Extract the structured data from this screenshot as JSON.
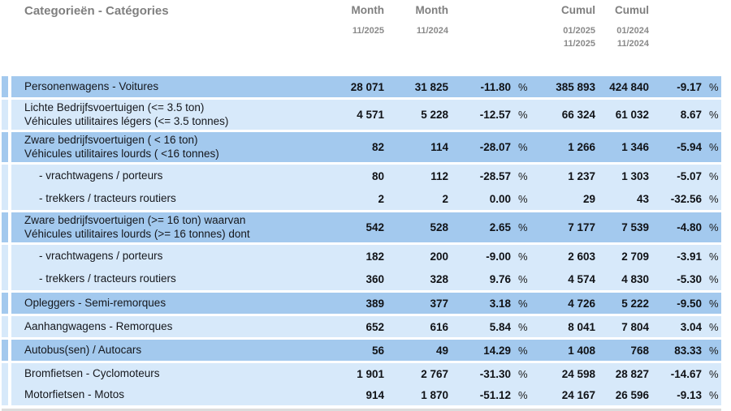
{
  "header": {
    "title": "Categorieën - Catégories",
    "month1": {
      "label": "Month",
      "period": "11/2025"
    },
    "month2": {
      "label": "Month",
      "period": "11/2024"
    },
    "cumul1": {
      "label": "Cumul",
      "from": "01/2025",
      "to": "11/2025"
    },
    "cumul2": {
      "label": "Cumul",
      "from": "01/2024",
      "to": "11/2024"
    },
    "percent_sign": "%"
  },
  "colors": {
    "row_dark": "#a3c9ee",
    "row_light": "#d7e9fa",
    "header_text": "#7f7f7f",
    "body_text": "#15171c"
  },
  "table": {
    "rows": [
      {
        "label1": "Personenwagens - Voitures",
        "label2": "",
        "shade": "dark",
        "sub": false,
        "gap": false,
        "m1": "28 071",
        "m2": "31 825",
        "mp": "-11.80",
        "c1": "385 893",
        "c2": "424 840",
        "cp": "-9.17"
      },
      {
        "label1": "Lichte Bedrijfsvoertuigen (<= 3.5 ton)",
        "label2": "Véhicules utilitaires légers (<= 3.5 tonnes)",
        "shade": "light",
        "sub": false,
        "gap": true,
        "m1": "4 571",
        "m2": "5 228",
        "mp": "-12.57",
        "c1": "66 324",
        "c2": "61 032",
        "cp": "8.67"
      },
      {
        "label1": "Zware bedrijfsvoertuigen ( < 16 ton)",
        "label2": "Véhicules utilitaires lourds ( <16 tonnes)",
        "shade": "dark",
        "sub": false,
        "gap": true,
        "m1": "82",
        "m2": "114",
        "mp": "-28.07",
        "c1": "1 266",
        "c2": "1 346",
        "cp": "-5.94"
      },
      {
        "label1": "- vrachtwagens / porteurs",
        "label2": "",
        "shade": "light",
        "sub": true,
        "gap": true,
        "m1": "80",
        "m2": "112",
        "mp": "-28.57",
        "c1": "1 237",
        "c2": "1 303",
        "cp": "-5.07"
      },
      {
        "label1": "- trekkers / tracteurs routiers",
        "label2": "",
        "shade": "light",
        "sub": true,
        "gap": false,
        "m1": "2",
        "m2": "2",
        "mp": "0.00",
        "c1": "29",
        "c2": "43",
        "cp": "-32.56"
      },
      {
        "label1": "Zware bedrijfsvoertuigen (>= 16 ton) waarvan",
        "label2": "Véhicules utilitaires lourds (>= 16 tonnes) dont",
        "shade": "dark",
        "sub": false,
        "gap": true,
        "m1": "542",
        "m2": "528",
        "mp": "2.65",
        "c1": "7 177",
        "c2": "7 539",
        "cp": "-4.80"
      },
      {
        "label1": "- vrachtwagens / porteurs",
        "label2": "",
        "shade": "light",
        "sub": true,
        "gap": true,
        "m1": "182",
        "m2": "200",
        "mp": "-9.00",
        "c1": "2 603",
        "c2": "2 709",
        "cp": "-3.91"
      },
      {
        "label1": "- trekkers / tracteurs routiers",
        "label2": "",
        "shade": "light",
        "sub": true,
        "gap": false,
        "m1": "360",
        "m2": "328",
        "mp": "9.76",
        "c1": "4 574",
        "c2": "4 830",
        "cp": "-5.30"
      },
      {
        "label1": "Opleggers - Semi-remorques",
        "label2": "",
        "shade": "dark",
        "sub": false,
        "gap": true,
        "m1": "389",
        "m2": "377",
        "mp": "3.18",
        "c1": "4 726",
        "c2": "5 222",
        "cp": "-9.50"
      },
      {
        "label1": "Aanhangwagens - Remorques",
        "label2": "",
        "shade": "light",
        "sub": false,
        "gap": true,
        "m1": "652",
        "m2": "616",
        "mp": "5.84",
        "c1": "8 041",
        "c2": "7 804",
        "cp": "3.04"
      },
      {
        "label1": "Autobus(sen) / Autocars",
        "label2": "",
        "shade": "dark",
        "sub": false,
        "gap": true,
        "m1": "56",
        "m2": "49",
        "mp": "14.29",
        "c1": "1 408",
        "c2": "768",
        "cp": "83.33"
      },
      {
        "label1": "Bromfietsen - Cyclomoteurs",
        "label2": "",
        "shade": "light",
        "sub": false,
        "gap": true,
        "m1": "1 901",
        "m2": "2 767",
        "mp": "-31.30",
        "c1": "24 598",
        "c2": "28 827",
        "cp": "-14.67"
      },
      {
        "label1": "Motorfietsen - Motos",
        "label2": "",
        "shade": "light",
        "sub": false,
        "gap": false,
        "m1": "914",
        "m2": "1 870",
        "mp": "-51.12",
        "c1": "24 167",
        "c2": "26 596",
        "cp": "-9.13"
      }
    ]
  }
}
